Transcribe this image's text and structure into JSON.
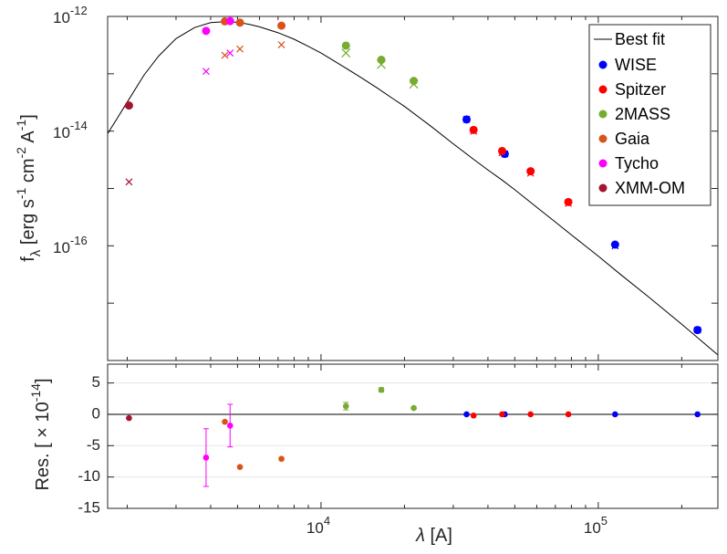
{
  "chart_data": {
    "type": "scatter",
    "layout": "sed-with-residuals",
    "x_scale": "log",
    "xlim": [
      1700,
      270000
    ],
    "xticks": [
      {
        "value": 10000,
        "base": "10",
        "exp": "4"
      },
      {
        "value": 100000,
        "base": "10",
        "exp": "5"
      }
    ],
    "xlabel": {
      "symbol": "λ",
      "unit": " [A]"
    },
    "top_panel": {
      "y_scale": "log",
      "ylim": [
        1e-18,
        1e-12
      ],
      "yticks": [
        {
          "value": 1e-12,
          "base": "10",
          "exp": "-12"
        },
        {
          "value": 1e-14,
          "base": "10",
          "exp": "-14"
        },
        {
          "value": 1e-16,
          "base": "10",
          "exp": "-16"
        }
      ],
      "ylabel": {
        "main": "f",
        "sub": "λ",
        "bracket_open": " [erg s",
        "s_exp": "-1",
        "cm": " cm",
        "cm_exp": "-2",
        "a": " A",
        "a_exp": "-1",
        "bracket_close": "]"
      }
    },
    "bottom_panel": {
      "y_scale": "linear",
      "ylim": [
        -15,
        8
      ],
      "yticks": [
        5,
        0,
        -5,
        -10,
        -15
      ],
      "grid": true,
      "ylabel": {
        "text": "Res. [ × 10",
        "exp": "-14",
        "close": "]"
      }
    },
    "legend": {
      "position": "top-right",
      "entries": [
        "Best fit",
        "WISE",
        "Spitzer",
        "2MASS",
        "Gaia",
        "Tycho",
        "XMM-OM"
      ]
    },
    "best_fit": {
      "name": "Best fit",
      "color": "#000000",
      "x": [
        1700,
        2000,
        2300,
        2600,
        3000,
        3500,
        4000,
        4500,
        5000,
        5500,
        6000,
        7000,
        8000,
        9000,
        10000,
        12000,
        14000,
        16000,
        18000,
        20000,
        25000,
        30000,
        35000,
        40000,
        45000,
        50000,
        60000,
        70000,
        80000,
        100000,
        120000,
        150000,
        200000,
        270000
      ],
      "y": [
        9e-15,
        3.2e-14,
        9.5e-14,
        2.05e-13,
        4.1e-13,
        6.4e-13,
        7.8e-13,
        8.1e-13,
        7.9e-13,
        7.3e-13,
        6.6e-13,
        5.2e-13,
        4e-13,
        3e-13,
        2.3e-13,
        1.35e-13,
        8.5e-14,
        5.6e-14,
        3.8e-14,
        2.7e-14,
        1.2e-14,
        6e-15,
        3.4e-15,
        2.1e-15,
        1.4e-15,
        9.5e-16,
        4.7e-16,
        2.6e-16,
        1.55e-16,
        6.6e-17,
        3.2e-17,
        1.35e-17,
        4.3e-18,
        1.25e-18
      ]
    },
    "series": [
      {
        "name": "WISE",
        "color": "#0000ff",
        "x": [
          33500,
          46000,
          115000,
          228000
        ],
        "observed": [
          1.6e-14,
          4e-15,
          1.05e-16,
          3.4e-18
        ],
        "model": [
          1.6e-14,
          4e-15,
          1e-16,
          3.4e-18
        ],
        "residual": [
          0.0,
          0.0,
          0.0,
          0.0
        ]
      },
      {
        "name": "Spitzer",
        "color": "#ff0000",
        "x": [
          35500,
          45000,
          57000,
          78000
        ],
        "observed": [
          1.05e-14,
          4.5e-15,
          2e-15,
          5.8e-16
        ],
        "model": [
          1e-14,
          4.2e-15,
          1.85e-15,
          5.5e-16
        ],
        "residual": [
          -0.2,
          0.0,
          0.0,
          0.0
        ]
      },
      {
        "name": "2MASS",
        "color": "#77ac30",
        "x": [
          12300,
          16500,
          21600
        ],
        "observed": [
          3.1e-13,
          1.75e-13,
          7.5e-14
        ],
        "model": [
          2.3e-13,
          1.45e-13,
          6.6e-14
        ],
        "model_size": "large",
        "residual": [
          1.3,
          3.9,
          1.0
        ],
        "residual_err": [
          0.6,
          0.35,
          0.2
        ]
      },
      {
        "name": "Gaia",
        "color": "#d95319",
        "x": [
          4500,
          5100,
          7200
        ],
        "observed": [
          8.2e-13,
          7.8e-13,
          6.9e-13
        ],
        "model": [
          2.1e-13,
          2.7e-13,
          3.2e-13
        ],
        "residual": [
          -1.2,
          -8.4,
          -7.1
        ],
        "residual_err": [
          0.15,
          0.15,
          0.2
        ]
      },
      {
        "name": "Tycho",
        "color": "#ff00ff",
        "x": [
          3850,
          4700
        ],
        "observed": [
          5.6e-13,
          8.3e-13
        ],
        "model": [
          1.1e-13,
          2.3e-13
        ],
        "residual": [
          -6.9,
          -1.8
        ],
        "residual_err": [
          4.6,
          3.4
        ]
      },
      {
        "name": "XMM-OM",
        "color": "#a2142f",
        "x": [
          2030
        ],
        "observed": [
          2.8e-14
        ],
        "model": [
          1.3e-15
        ],
        "residual": [
          -0.6
        ],
        "residual_err": [
          0.1
        ]
      }
    ]
  }
}
